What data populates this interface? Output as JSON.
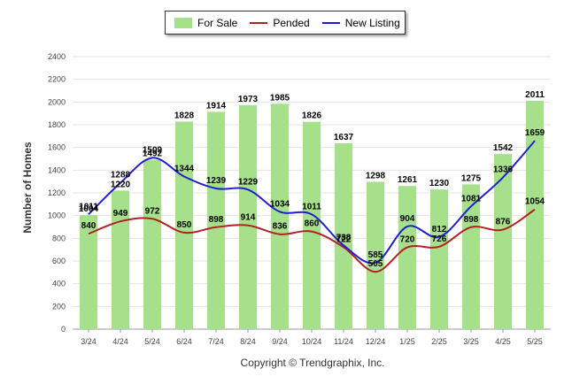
{
  "legend": {
    "items": [
      {
        "label": "For Sale",
        "kind": "bar",
        "color": "#a6e08a"
      },
      {
        "label": "Pended",
        "kind": "line",
        "color": "#b22222"
      },
      {
        "label": "New Listing",
        "kind": "line",
        "color": "#1f1fd1"
      }
    ]
  },
  "copyright": "Copyright © Trendgraphix, Inc.",
  "chart_data": {
    "type": "bar",
    "title": "",
    "xlabel": "",
    "ylabel": "Number of Homes",
    "ylim": [
      0,
      2400
    ],
    "yticks": [
      0,
      200,
      400,
      600,
      800,
      1000,
      1200,
      1400,
      1600,
      1800,
      2000,
      2200,
      2400
    ],
    "grid": true,
    "legend_position": "top-center",
    "categories": [
      "3/24",
      "4/24",
      "5/24",
      "6/24",
      "7/24",
      "8/24",
      "9/24",
      "10/24",
      "11/24",
      "12/24",
      "1/25",
      "2/25",
      "3/25",
      "4/25",
      "5/25"
    ],
    "series": [
      {
        "name": "For Sale",
        "type": "bar",
        "color": "#a6e08a",
        "values": [
          1004,
          1220,
          1492,
          1828,
          1914,
          1973,
          1985,
          1826,
          1637,
          1298,
          1261,
          1230,
          1275,
          1542,
          2011
        ]
      },
      {
        "name": "Pended",
        "type": "line",
        "color": "#b22222",
        "values": [
          840,
          949,
          972,
          850,
          898,
          914,
          836,
          860,
          722,
          505,
          720,
          726,
          898,
          876,
          1054
        ]
      },
      {
        "name": "New Listing",
        "type": "line",
        "color": "#1f1fd1",
        "values": [
          1011,
          1288,
          1509,
          1344,
          1239,
          1229,
          1034,
          1011,
          738,
          585,
          904,
          812,
          1081,
          1336,
          1659
        ]
      }
    ]
  }
}
